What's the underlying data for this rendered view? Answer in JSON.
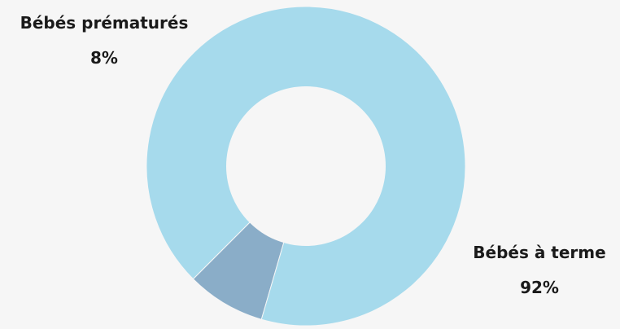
{
  "chart_data": {
    "type": "pie",
    "donut": true,
    "background": "#f6f6f6",
    "slices": [
      {
        "label": "Bébés prématurés",
        "value": 8,
        "value_label": "8%",
        "color": "#8aadc8"
      },
      {
        "label": "Bébés à terme",
        "value": 92,
        "value_label": "92%",
        "color": "#a6daec"
      }
    ]
  }
}
